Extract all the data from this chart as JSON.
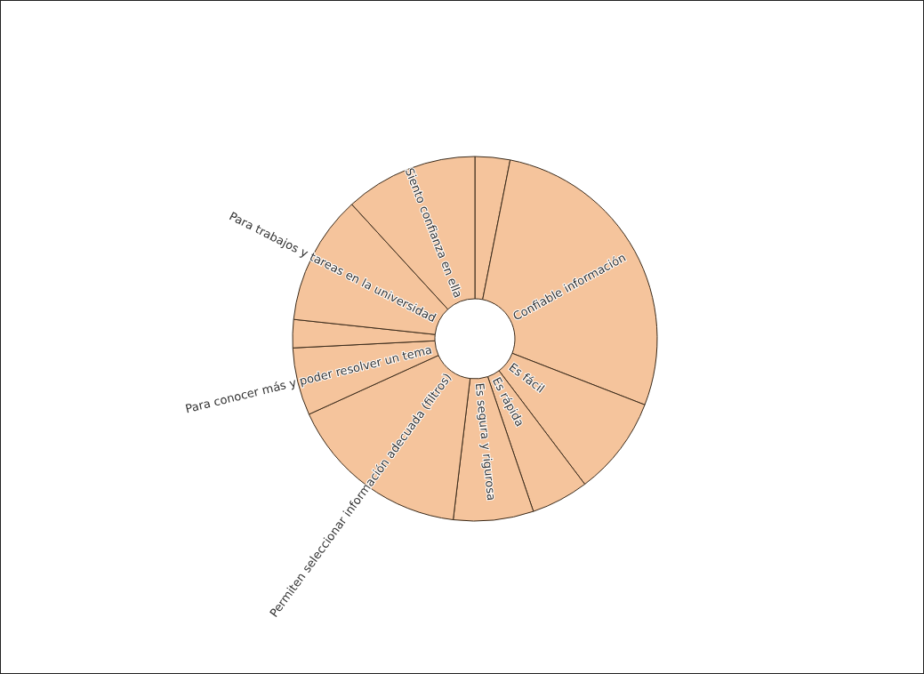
{
  "chart_data": {
    "type": "donut",
    "categories": [
      null,
      "Confiable información",
      "Es fácil",
      "Es rápida",
      "Es segura y rigurosa",
      "Permiten seleccionar información adecuada (filtros)",
      "Para conocer más y poder resolver un tema",
      null,
      "Para trabajos y tareas en la universidad",
      "Siento confianza en ella"
    ],
    "values": [
      3.1,
      27.8,
      8.8,
      5.1,
      7.1,
      16.3,
      6.0,
      2.5,
      11.5,
      11.8
    ],
    "colors": [
      "#f5c49c",
      "#f5c49c",
      "#f5c49c",
      "#f5c49c",
      "#f5c49c",
      "#f5c49c",
      "#f5c49c",
      "#f5c49c",
      "#f5c49c",
      "#f5c49c"
    ]
  }
}
